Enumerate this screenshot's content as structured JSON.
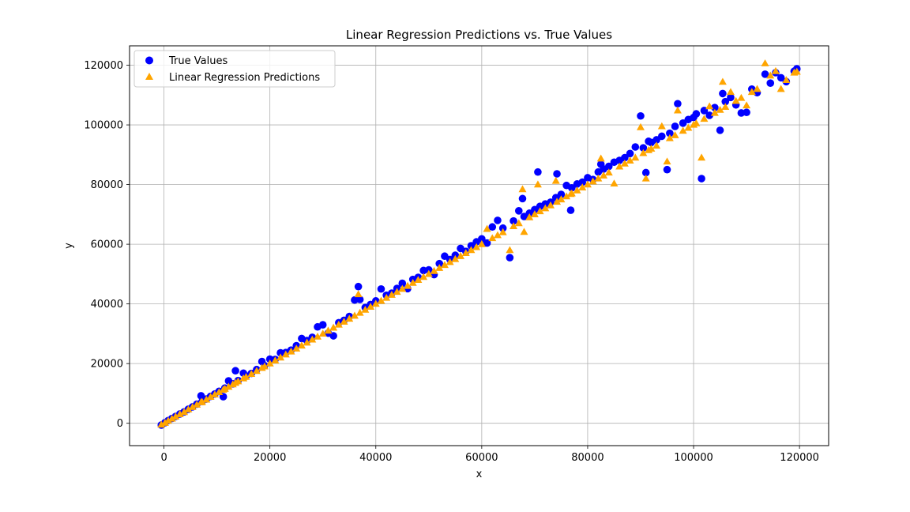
{
  "chart_data": {
    "type": "scatter",
    "title": "Linear Regression Predictions vs. True Values",
    "xlabel": "x",
    "ylabel": "y",
    "xlim": [
      -6500,
      125500
    ],
    "ylim": [
      -7500,
      126500
    ],
    "x_ticks": [
      0,
      20000,
      40000,
      60000,
      80000,
      100000,
      120000
    ],
    "y_ticks": [
      0,
      20000,
      40000,
      60000,
      80000,
      100000,
      120000
    ],
    "grid": true,
    "legend_position": "top-left",
    "series": [
      {
        "name": "True Values",
        "marker": "circle",
        "color": "#0000ff",
        "points": [
          [
            -500,
            -600
          ],
          [
            200,
            200
          ],
          [
            800,
            900
          ],
          [
            1500,
            1600
          ],
          [
            2200,
            2300
          ],
          [
            3000,
            3100
          ],
          [
            3800,
            3800
          ],
          [
            4600,
            4700
          ],
          [
            5400,
            5500
          ],
          [
            6200,
            6400
          ],
          [
            7000,
            9200
          ],
          [
            7200,
            7300
          ],
          [
            8000,
            8100
          ],
          [
            8800,
            9000
          ],
          [
            9600,
            9800
          ],
          [
            10400,
            10700
          ],
          [
            11200,
            8900
          ],
          [
            11500,
            11800
          ],
          [
            12200,
            14200
          ],
          [
            13000,
            13200
          ],
          [
            13500,
            17600
          ],
          [
            14000,
            14300
          ],
          [
            15000,
            16800
          ],
          [
            15500,
            15800
          ],
          [
            16500,
            16700
          ],
          [
            17500,
            18000
          ],
          [
            18500,
            20700
          ],
          [
            19000,
            19300
          ],
          [
            20000,
            21500
          ],
          [
            21000,
            21400
          ],
          [
            22000,
            23600
          ],
          [
            23000,
            23700
          ],
          [
            24000,
            24500
          ],
          [
            25000,
            26000
          ],
          [
            26000,
            28400
          ],
          [
            27000,
            27700
          ],
          [
            28000,
            28800
          ],
          [
            29000,
            32300
          ],
          [
            30000,
            33000
          ],
          [
            31000,
            30200
          ],
          [
            32000,
            29300
          ],
          [
            33000,
            33700
          ],
          [
            34000,
            34500
          ],
          [
            35000,
            35800
          ],
          [
            36000,
            41300
          ],
          [
            36700,
            45800
          ],
          [
            37000,
            41500
          ],
          [
            38000,
            38800
          ],
          [
            39000,
            39800
          ],
          [
            40000,
            41000
          ],
          [
            41000,
            45000
          ],
          [
            42000,
            42900
          ],
          [
            43000,
            43600
          ],
          [
            44000,
            45200
          ],
          [
            45000,
            46900
          ],
          [
            46000,
            45100
          ],
          [
            47000,
            48200
          ],
          [
            48000,
            48900
          ],
          [
            49000,
            51200
          ],
          [
            50000,
            51400
          ],
          [
            51000,
            49800
          ],
          [
            52000,
            53500
          ],
          [
            53000,
            56000
          ],
          [
            54000,
            54900
          ],
          [
            55000,
            56300
          ],
          [
            56000,
            58600
          ],
          [
            57000,
            57600
          ],
          [
            58000,
            59500
          ],
          [
            59000,
            60800
          ],
          [
            60000,
            61800
          ],
          [
            61000,
            60400
          ],
          [
            62000,
            65800
          ],
          [
            63000,
            68000
          ],
          [
            64000,
            65400
          ],
          [
            65300,
            55500
          ],
          [
            66000,
            67800
          ],
          [
            67000,
            71200
          ],
          [
            67700,
            75300
          ],
          [
            68000,
            69300
          ],
          [
            69000,
            70400
          ],
          [
            70000,
            71600
          ],
          [
            70600,
            84200
          ],
          [
            71000,
            72700
          ],
          [
            72000,
            73500
          ],
          [
            73000,
            74100
          ],
          [
            74000,
            75600
          ],
          [
            74200,
            83600
          ],
          [
            75000,
            76700
          ],
          [
            76000,
            79700
          ],
          [
            76800,
            71400
          ],
          [
            77000,
            78900
          ],
          [
            78000,
            80200
          ],
          [
            79000,
            80800
          ],
          [
            80000,
            82300
          ],
          [
            81000,
            81700
          ],
          [
            82000,
            84200
          ],
          [
            82500,
            86800
          ],
          [
            83000,
            85200
          ],
          [
            84000,
            86100
          ],
          [
            85000,
            87500
          ],
          [
            86000,
            88100
          ],
          [
            87000,
            89000
          ],
          [
            88000,
            90400
          ],
          [
            89000,
            92600
          ],
          [
            90000,
            103000
          ],
          [
            90500,
            92300
          ],
          [
            91000,
            84000
          ],
          [
            91500,
            94500
          ],
          [
            92000,
            94100
          ],
          [
            93000,
            95000
          ],
          [
            94000,
            96200
          ],
          [
            95000,
            85000
          ],
          [
            95500,
            97200
          ],
          [
            96500,
            99500
          ],
          [
            97000,
            107100
          ],
          [
            98000,
            100600
          ],
          [
            99000,
            101800
          ],
          [
            100000,
            102500
          ],
          [
            100500,
            103700
          ],
          [
            101500,
            82000
          ],
          [
            102000,
            104800
          ],
          [
            103000,
            103200
          ],
          [
            104000,
            105800
          ],
          [
            105000,
            98200
          ],
          [
            105500,
            110500
          ],
          [
            106000,
            107800
          ],
          [
            107000,
            109200
          ],
          [
            108000,
            106700
          ],
          [
            109000,
            104000
          ],
          [
            110000,
            104200
          ],
          [
            111000,
            112000
          ],
          [
            112000,
            110800
          ],
          [
            113500,
            117000
          ],
          [
            114500,
            114000
          ],
          [
            115500,
            117500
          ],
          [
            116500,
            115800
          ],
          [
            117500,
            114500
          ],
          [
            119000,
            118000
          ],
          [
            119500,
            118800
          ]
        ]
      },
      {
        "name": "Linear Regression Predictions",
        "marker": "triangle",
        "color": "#ffa500",
        "points": [
          [
            -500,
            -500
          ],
          [
            200,
            100
          ],
          [
            800,
            800
          ],
          [
            1500,
            1500
          ],
          [
            2200,
            2200
          ],
          [
            3000,
            3000
          ],
          [
            3800,
            3700
          ],
          [
            4600,
            4600
          ],
          [
            5400,
            5400
          ],
          [
            6200,
            6200
          ],
          [
            7000,
            7000
          ],
          [
            7200,
            7100
          ],
          [
            8000,
            7900
          ],
          [
            8800,
            8800
          ],
          [
            9600,
            9600
          ],
          [
            10400,
            10400
          ],
          [
            11200,
            11200
          ],
          [
            11500,
            11500
          ],
          [
            12200,
            12200
          ],
          [
            13000,
            13000
          ],
          [
            13500,
            13500
          ],
          [
            14000,
            14000
          ],
          [
            15000,
            15000
          ],
          [
            15500,
            15500
          ],
          [
            16500,
            16500
          ],
          [
            17500,
            17500
          ],
          [
            18500,
            18500
          ],
          [
            19000,
            19000
          ],
          [
            20000,
            20000
          ],
          [
            21000,
            21000
          ],
          [
            22000,
            22000
          ],
          [
            23000,
            23000
          ],
          [
            24000,
            24000
          ],
          [
            25000,
            25000
          ],
          [
            26000,
            26000
          ],
          [
            27000,
            27000
          ],
          [
            28000,
            28000
          ],
          [
            29000,
            29000
          ],
          [
            30000,
            30000
          ],
          [
            31000,
            31000
          ],
          [
            32000,
            32000
          ],
          [
            33000,
            33000
          ],
          [
            34000,
            34000
          ],
          [
            35000,
            35000
          ],
          [
            36000,
            36000
          ],
          [
            36700,
            43200
          ],
          [
            37000,
            37000
          ],
          [
            38000,
            38000
          ],
          [
            39000,
            39000
          ],
          [
            40000,
            40000
          ],
          [
            41000,
            41000
          ],
          [
            42000,
            42000
          ],
          [
            43000,
            43000
          ],
          [
            44000,
            44000
          ],
          [
            45000,
            45000
          ],
          [
            46000,
            46000
          ],
          [
            47000,
            47000
          ],
          [
            48000,
            48000
          ],
          [
            49000,
            49000
          ],
          [
            50000,
            50000
          ],
          [
            51000,
            51000
          ],
          [
            52000,
            52000
          ],
          [
            53000,
            53000
          ],
          [
            54000,
            54000
          ],
          [
            55000,
            55000
          ],
          [
            56000,
            56000
          ],
          [
            57000,
            57000
          ],
          [
            58000,
            58000
          ],
          [
            59000,
            59000
          ],
          [
            60000,
            60000
          ],
          [
            61000,
            65100
          ],
          [
            62000,
            62000
          ],
          [
            63000,
            63000
          ],
          [
            64000,
            64000
          ],
          [
            65300,
            58000
          ],
          [
            66000,
            66000
          ],
          [
            67000,
            67000
          ],
          [
            67700,
            78400
          ],
          [
            68000,
            64100
          ],
          [
            69000,
            69000
          ],
          [
            70000,
            70000
          ],
          [
            70600,
            80000
          ],
          [
            71000,
            71000
          ],
          [
            72000,
            72000
          ],
          [
            73000,
            73000
          ],
          [
            74000,
            81200
          ],
          [
            74200,
            74200
          ],
          [
            75000,
            75000
          ],
          [
            76000,
            76000
          ],
          [
            76800,
            76800
          ],
          [
            77000,
            77000
          ],
          [
            78000,
            78000
          ],
          [
            79000,
            79000
          ],
          [
            80000,
            80000
          ],
          [
            81000,
            81000
          ],
          [
            82000,
            82000
          ],
          [
            82500,
            88700
          ],
          [
            83000,
            83000
          ],
          [
            84000,
            84000
          ],
          [
            85000,
            80300
          ],
          [
            86000,
            86000
          ],
          [
            87000,
            87000
          ],
          [
            88000,
            88000
          ],
          [
            89000,
            89000
          ],
          [
            90000,
            99200
          ],
          [
            90500,
            90500
          ],
          [
            91000,
            82000
          ],
          [
            91500,
            91500
          ],
          [
            92000,
            92000
          ],
          [
            93000,
            93000
          ],
          [
            94000,
            99500
          ],
          [
            95000,
            87700
          ],
          [
            95500,
            95500
          ],
          [
            96500,
            96500
          ],
          [
            97000,
            104800
          ],
          [
            98000,
            98000
          ],
          [
            99000,
            99000
          ],
          [
            100000,
            100000
          ],
          [
            100500,
            100500
          ],
          [
            101500,
            89000
          ],
          [
            102000,
            102000
          ],
          [
            103000,
            106200
          ],
          [
            104000,
            104000
          ],
          [
            105000,
            105000
          ],
          [
            105500,
            114400
          ],
          [
            106000,
            106000
          ],
          [
            107000,
            111000
          ],
          [
            108000,
            108000
          ],
          [
            109000,
            109000
          ],
          [
            110000,
            106500
          ],
          [
            111000,
            111000
          ],
          [
            112000,
            112000
          ],
          [
            113500,
            120600
          ],
          [
            114500,
            116500
          ],
          [
            115500,
            118000
          ],
          [
            116500,
            112000
          ],
          [
            117500,
            115000
          ],
          [
            119000,
            117500
          ],
          [
            119500,
            117800
          ]
        ]
      }
    ]
  }
}
